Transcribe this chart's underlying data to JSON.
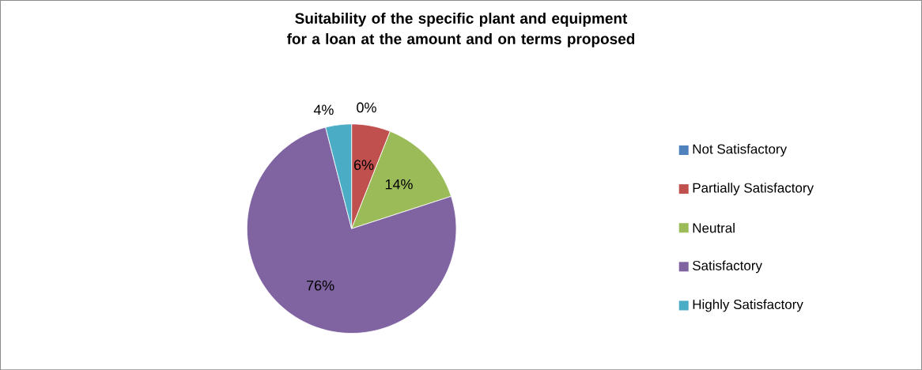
{
  "chart_data": {
    "type": "pie",
    "title": "Suitability of the specific plant and equipment for a loan at the amount and on terms proposed",
    "categories": [
      "Not Satisfactory",
      "Partially Satisfactory",
      "Neutral",
      "Satisfactory",
      "Highly Satisfactory"
    ],
    "values": [
      0,
      6,
      14,
      76,
      4
    ],
    "colors": [
      "#4f81bd",
      "#c0504d",
      "#9bbb59",
      "#8064a2",
      "#4bacc6"
    ],
    "value_labels": [
      "0%",
      "6%",
      "14%",
      "76%",
      "4%"
    ],
    "legend": "right"
  }
}
